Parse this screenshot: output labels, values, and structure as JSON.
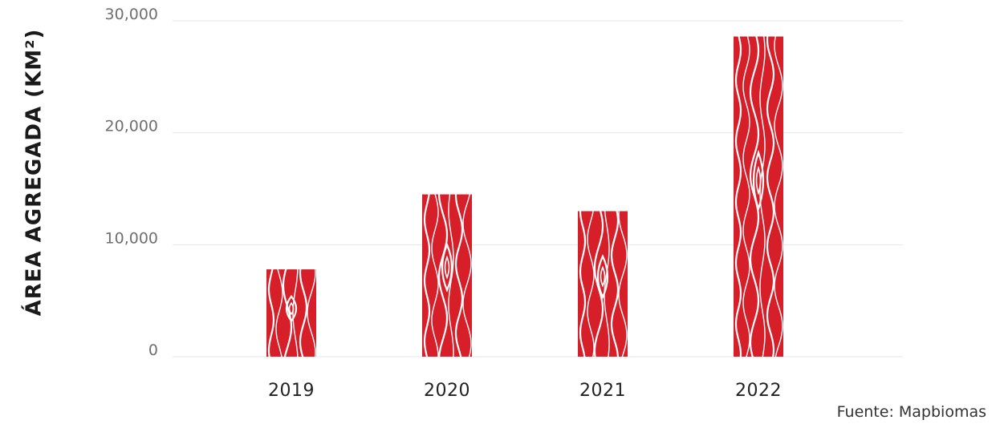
{
  "chart_data": {
    "type": "bar",
    "categories": [
      "2019",
      "2020",
      "2021",
      "2022"
    ],
    "values": [
      7800,
      14500,
      13000,
      28600
    ],
    "ylabel": "ÁREA AGREGADA (KM²)",
    "xlabel": "",
    "title": "",
    "ylim": [
      0,
      30000
    ],
    "yticks": [
      0,
      10000,
      20000,
      30000
    ],
    "ytick_labels": [
      "0",
      "10,000",
      "20,000",
      "30,000"
    ],
    "grid": true,
    "bar_color": "#d71f2a",
    "bar_texture": "wood-grain"
  },
  "source": "Fuente: Mapbiomas",
  "colors": {
    "bar": "#d71f2a",
    "grain": "#ffffff",
    "grid": "#e6e6e6"
  }
}
